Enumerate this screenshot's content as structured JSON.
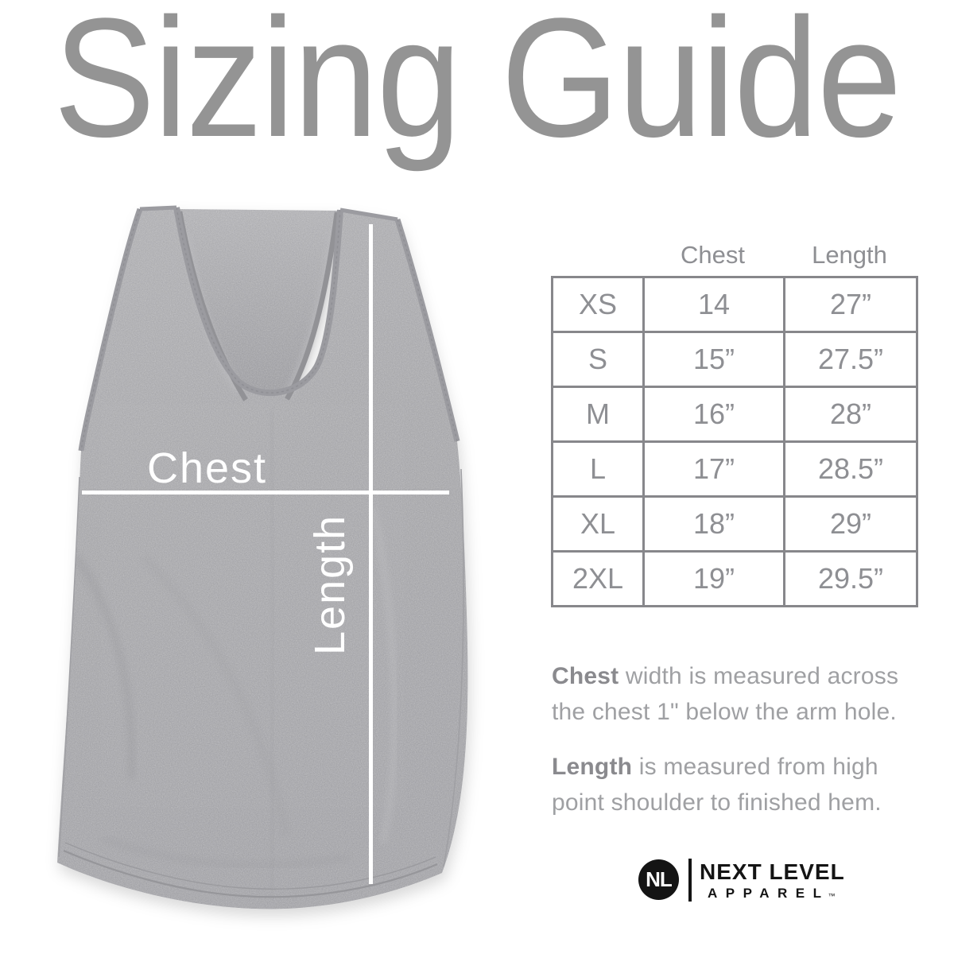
{
  "title": "Sizing Guide",
  "diagram": {
    "garment": "racerback-tank-top",
    "chest_line_label": "Chest",
    "length_line_label": "Length"
  },
  "size_chart": {
    "col_headers": [
      "Chest",
      "Length"
    ],
    "rows": [
      {
        "size": "XS",
        "chest": "14",
        "length": "27”"
      },
      {
        "size": "S",
        "chest": "15”",
        "length": "27.5”"
      },
      {
        "size": "M",
        "chest": "16”",
        "length": "28”"
      },
      {
        "size": "L",
        "chest": "17”",
        "length": "28.5”"
      },
      {
        "size": "XL",
        "chest": "18”",
        "length": "29”"
      },
      {
        "size": "2XL",
        "chest": "19”",
        "length": "29.5”"
      }
    ]
  },
  "notes": [
    {
      "lead": "Chest",
      "rest": " width is measured across the chest 1\" below the arm hole."
    },
    {
      "lead": "Length",
      "rest": " is measured from high point shoulder to finished hem."
    }
  ],
  "brand": {
    "monogram": "NL",
    "name": "NEXT LEVEL",
    "subname": "APPAREL",
    "trademark": "™"
  },
  "colors": {
    "title_gray": "#949494",
    "table_text_gray": "#8e8f93",
    "table_border_gray": "#87878b",
    "note_gray": "#9fa0a3",
    "fabric_heather_gray": "#aaaaad",
    "measure_line_white": "#ffffff",
    "logo_black": "#141414",
    "background": "#ffffff"
  }
}
